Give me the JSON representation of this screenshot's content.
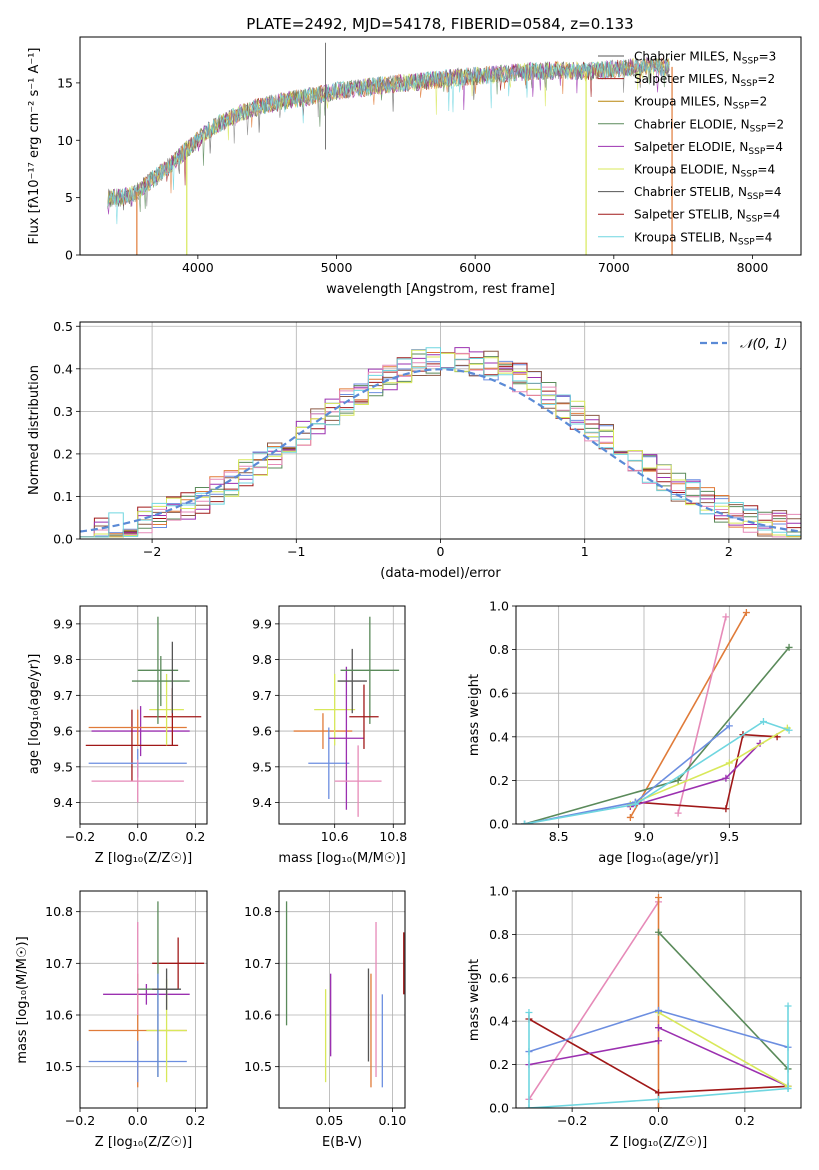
{
  "figure": {
    "title": "PLATE=2492, MJD=54178, FIBERID=0584, z=0.133",
    "colors": {
      "Chabrier MILES": "#6c8ee0",
      "Salpeter MILES": "#e07b39",
      "Kroupa MILES": "#b8860b",
      "Chabrier ELODIE": "#5a8a5a",
      "Salpeter ELODIE": "#9b30b0",
      "Kroupa ELODIE": "#d8e85a",
      "Chabrier STELIB": "#555555",
      "Salpeter STELIB": "#a01818",
      "Kroupa STELIB": "#6fd6e0",
      "gauss": "#5a8ad6",
      "pink": "#e68ab8"
    }
  },
  "chart_data": [
    {
      "type": "line",
      "name": "spectrum",
      "xlabel": "wavelength [Angstrom, rest frame]",
      "ylabel": "Flux [fλ10⁻¹⁷ erg cm⁻² s⁻¹ A⁻¹]",
      "xlim": [
        3150,
        8350
      ],
      "ylim": [
        0,
        19
      ],
      "xticks": [
        4000,
        5000,
        6000,
        7000,
        8000
      ],
      "yticks": [
        0,
        5,
        10,
        15
      ],
      "grid": false,
      "legend_position": "lower-right",
      "legend": [
        {
          "label": "Chabrier MILES, N",
          "sub": "SSP",
          "suffix": "=3",
          "color": "#555555"
        },
        {
          "label": "Salpeter MILES, N",
          "sub": "SSP",
          "suffix": "=2",
          "color": "#a01818"
        },
        {
          "label": "Kroupa MILES, N",
          "sub": "SSP",
          "suffix": "=2",
          "color": "#b8860b"
        },
        {
          "label": "Chabrier ELODIE, N",
          "sub": "SSP",
          "suffix": "=2",
          "color": "#5a8a5a"
        },
        {
          "label": "Salpeter ELODIE, N",
          "sub": "SSP",
          "suffix": "=4",
          "color": "#9b30b0"
        },
        {
          "label": "Kroupa ELODIE, N",
          "sub": "SSP",
          "suffix": "=4",
          "color": "#d8e85a"
        },
        {
          "label": "Chabrier STELIB, N",
          "sub": "SSP",
          "suffix": "=4",
          "color": "#555555"
        },
        {
          "label": "Salpeter STELIB, N",
          "sub": "SSP",
          "suffix": "=4",
          "color": "#a01818"
        },
        {
          "label": "Kroupa STELIB, N",
          "sub": "SSP",
          "suffix": "=4",
          "color": "#6fd6e0"
        }
      ],
      "continuum": {
        "x": [
          3350,
          3450,
          3550,
          3650,
          3750,
          3850,
          3950,
          4050,
          4150,
          4250,
          4400,
          4600,
          4800,
          5000,
          5200,
          5400,
          5600,
          5800,
          6000,
          6200,
          6400,
          6600,
          6800,
          7000,
          7200,
          7400
        ],
        "y": [
          5.0,
          5.0,
          5.4,
          6.4,
          7.3,
          8.4,
          9.5,
          10.6,
          11.4,
          12.0,
          12.8,
          13.4,
          13.8,
          14.3,
          14.6,
          14.9,
          15.1,
          15.4,
          15.6,
          15.8,
          16.0,
          16.1,
          16.0,
          16.2,
          16.4,
          16.4
        ]
      },
      "drops": [
        {
          "x": 3560,
          "color": "#e07b39"
        },
        {
          "x": 3920,
          "color": "#d8e85a"
        },
        {
          "x": 6800,
          "color": "#d8e85a"
        },
        {
          "x": 7420,
          "color": "#e07b39"
        }
      ]
    },
    {
      "type": "histogram",
      "name": "residuals",
      "xlabel": "(data-model)/error",
      "ylabel": "Normed distribution",
      "xlim": [
        -2.5,
        2.5
      ],
      "ylim": [
        0,
        0.51
      ],
      "xticks": [
        -2,
        -1,
        0,
        1,
        2
      ],
      "yticks": [
        0,
        0.1,
        0.2,
        0.3,
        0.4,
        0.5
      ],
      "grid": true,
      "legend_position": "upper-right",
      "gauss_label": "𝒩(0, 1)",
      "bin_width": 0.1,
      "series_count": 9
    },
    {
      "type": "errorbar",
      "name": "age-vs-Z",
      "xlabel": "Z [log₁₀(Z/Z☉)]",
      "ylabel": "age  [log₁₀(age/yr)]",
      "xlim": [
        -0.2,
        0.24
      ],
      "ylim": [
        9.34,
        9.95
      ],
      "xticks": [
        -0.2,
        0.0,
        0.2
      ],
      "yticks": [
        9.4,
        9.5,
        9.6,
        9.7,
        9.8,
        9.9
      ],
      "grid": true,
      "points": [
        {
          "x": 0.01,
          "y": 9.6,
          "xerr": 0.17,
          "yerr": 0.07,
          "color": "#9b30b0"
        },
        {
          "x": -0.02,
          "y": 9.56,
          "xerr": 0.16,
          "yerr": 0.1,
          "color": "#a01818"
        },
        {
          "x": 0.0,
          "y": 9.61,
          "xerr": 0.17,
          "yerr": 0.05,
          "color": "#e07b39"
        },
        {
          "x": 0.0,
          "y": 9.51,
          "xerr": 0.17,
          "yerr": 0.04,
          "color": "#6c8ee0"
        },
        {
          "x": 0.0,
          "y": 9.46,
          "xerr": 0.16,
          "yerr": 0.06,
          "color": "#e68ab8"
        },
        {
          "x": 0.12,
          "y": 9.64,
          "xerr": 0.1,
          "yerr": 0.08,
          "color": "#a01818"
        },
        {
          "x": 0.1,
          "y": 9.66,
          "xerr": 0.06,
          "yerr": 0.1,
          "color": "#d8e85a"
        },
        {
          "x": 0.07,
          "y": 9.77,
          "xerr": 0.07,
          "yerr": 0.15,
          "color": "#5a8a5a"
        },
        {
          "x": 0.08,
          "y": 9.74,
          "xerr": 0.1,
          "yerr": 0.07,
          "color": "#5a8a5a"
        },
        {
          "x": 0.12,
          "y": 9.75,
          "xerr": 0.0,
          "yerr": 0.1,
          "color": "#555555"
        }
      ]
    },
    {
      "type": "errorbar",
      "name": "age-vs-mass",
      "xlabel": "mass [log₁₀(M/M☉)]",
      "ylabel": "",
      "xlim": [
        10.41,
        10.84
      ],
      "ylim": [
        9.34,
        9.95
      ],
      "xticks": [
        10.6,
        10.8
      ],
      "yticks": [
        9.4,
        9.5,
        9.6,
        9.7,
        9.8,
        9.9
      ],
      "grid": true,
      "points": [
        {
          "x": 10.56,
          "y": 9.6,
          "xerr": 0.1,
          "yerr": 0.05,
          "color": "#e07b39"
        },
        {
          "x": 10.58,
          "y": 9.51,
          "xerr": 0.07,
          "yerr": 0.1,
          "color": "#6c8ee0"
        },
        {
          "x": 10.6,
          "y": 9.66,
          "xerr": 0.07,
          "yerr": 0.1,
          "color": "#d8e85a"
        },
        {
          "x": 10.64,
          "y": 9.58,
          "xerr": 0.06,
          "yerr": 0.2,
          "color": "#9b30b0"
        },
        {
          "x": 10.68,
          "y": 9.46,
          "xerr": 0.08,
          "yerr": 0.1,
          "color": "#e68ab8"
        },
        {
          "x": 10.66,
          "y": 9.74,
          "xerr": 0.05,
          "yerr": 0.09,
          "color": "#555555"
        },
        {
          "x": 10.72,
          "y": 9.77,
          "xerr": 0.1,
          "yerr": 0.15,
          "color": "#5a8a5a"
        },
        {
          "x": 10.7,
          "y": 9.64,
          "xerr": 0.05,
          "yerr": 0.09,
          "color": "#a01818"
        }
      ]
    },
    {
      "type": "line",
      "name": "massweight-vs-age",
      "xlabel": "age  [log₁₀(age/yr)]",
      "ylabel": "mass weight",
      "xlim": [
        8.25,
        9.92
      ],
      "ylim": [
        0,
        1.0
      ],
      "xticks": [
        8.5,
        9.0,
        9.5
      ],
      "yticks": [
        0.0,
        0.2,
        0.4,
        0.6,
        0.8,
        1.0
      ],
      "grid": true,
      "series": [
        {
          "color": "#e07b39",
          "x": [
            8.92,
            9.6
          ],
          "y": [
            0.03,
            0.97
          ]
        },
        {
          "color": "#e68ab8",
          "x": [
            9.2,
            9.48
          ],
          "y": [
            0.05,
            0.95
          ]
        },
        {
          "color": "#5a8a5a",
          "x": [
            8.3,
            9.2,
            9.85
          ],
          "y": [
            0.0,
            0.2,
            0.81
          ]
        },
        {
          "color": "#a01818",
          "x": [
            8.95,
            9.48,
            9.58,
            9.78
          ],
          "y": [
            0.1,
            0.07,
            0.41,
            0.4
          ]
        },
        {
          "color": "#9b30b0",
          "x": [
            8.92,
            9.48,
            9.68
          ],
          "y": [
            0.08,
            0.21,
            0.37
          ]
        },
        {
          "color": "#d8e85a",
          "x": [
            8.92,
            9.5,
            9.84
          ],
          "y": [
            0.09,
            0.28,
            0.44
          ]
        },
        {
          "color": "#6c8ee0",
          "x": [
            8.3,
            8.95,
            9.5
          ],
          "y": [
            0.0,
            0.1,
            0.45
          ]
        },
        {
          "color": "#6fd6e0",
          "x": [
            8.3,
            8.95,
            9.7,
            9.85
          ],
          "y": [
            0.0,
            0.09,
            0.47,
            0.43
          ]
        }
      ]
    },
    {
      "type": "errorbar",
      "name": "mass-vs-Z",
      "xlabel": "Z [log₁₀(Z/Z☉)]",
      "ylabel": "mass [log₁₀(M/M☉)]",
      "xlim": [
        -0.2,
        0.24
      ],
      "ylim": [
        10.42,
        10.84
      ],
      "xticks": [
        -0.2,
        0.0,
        0.2
      ],
      "yticks": [
        10.5,
        10.6,
        10.7,
        10.8
      ],
      "grid": true,
      "points": [
        {
          "x": 0.03,
          "y": 10.64,
          "xerr": 0.15,
          "yerr": 0.02,
          "color": "#9b30b0"
        },
        {
          "x": 0.0,
          "y": 10.57,
          "xerr": 0.17,
          "yerr": 0.11,
          "color": "#e07b39"
        },
        {
          "x": 0.0,
          "y": 10.51,
          "xerr": 0.17,
          "yerr": 0.04,
          "color": "#6c8ee0"
        },
        {
          "x": 0.0,
          "y": 10.69,
          "xerr": 0.0,
          "yerr": 0.09,
          "color": "#e68ab8"
        },
        {
          "x": 0.14,
          "y": 10.7,
          "xerr": 0.09,
          "yerr": 0.05,
          "color": "#a01818"
        },
        {
          "x": 0.1,
          "y": 10.57,
          "xerr": 0.07,
          "yerr": 0.1,
          "color": "#d8e85a"
        },
        {
          "x": 0.07,
          "y": 10.65,
          "xerr": 0.07,
          "yerr": 0.17,
          "color": "#5a8a5a"
        },
        {
          "x": 0.07,
          "y": 10.58,
          "xerr": 0.0,
          "yerr": 0.1,
          "color": "#6c8ee0"
        },
        {
          "x": 0.1,
          "y": 10.65,
          "xerr": 0.05,
          "yerr": 0.04,
          "color": "#555555"
        }
      ]
    },
    {
      "type": "errorbar",
      "name": "mass-vs-ebv",
      "xlabel": "E(B-V)",
      "ylabel": "",
      "xlim": [
        0.01,
        0.11
      ],
      "ylim": [
        10.42,
        10.84
      ],
      "xticks": [
        0.05,
        0.1
      ],
      "yticks": [
        10.5,
        10.6,
        10.7,
        10.8
      ],
      "grid": true,
      "points": [
        {
          "x": 0.016,
          "y": 10.7,
          "xerr": 0,
          "yerr": 0.12,
          "color": "#5a8a5a"
        },
        {
          "x": 0.047,
          "y": 10.56,
          "xerr": 0,
          "yerr": 0.09,
          "color": "#d8e85a"
        },
        {
          "x": 0.051,
          "y": 10.6,
          "xerr": 0,
          "yerr": 0.08,
          "color": "#9b30b0"
        },
        {
          "x": 0.081,
          "y": 10.6,
          "xerr": 0,
          "yerr": 0.09,
          "color": "#555555"
        },
        {
          "x": 0.083,
          "y": 10.57,
          "xerr": 0,
          "yerr": 0.11,
          "color": "#e07b39"
        },
        {
          "x": 0.087,
          "y": 10.63,
          "xerr": 0,
          "yerr": 0.15,
          "color": "#e68ab8"
        },
        {
          "x": 0.092,
          "y": 10.55,
          "xerr": 0,
          "yerr": 0.09,
          "color": "#6c8ee0"
        },
        {
          "x": 0.109,
          "y": 10.7,
          "xerr": 0,
          "yerr": 0.06,
          "color": "#a01818"
        }
      ]
    },
    {
      "type": "line",
      "name": "massweight-vs-Z",
      "xlabel": "Z [log₁₀(Z/Z☉)]",
      "ylabel": "mass weight",
      "xlim": [
        -0.33,
        0.33
      ],
      "ylim": [
        0,
        1.0
      ],
      "xticks": [
        -0.2,
        0.0,
        0.2
      ],
      "yticks": [
        0.0,
        0.2,
        0.4,
        0.6,
        0.8,
        1.0
      ],
      "grid": true,
      "series": [
        {
          "color": "#e68ab8",
          "x": [
            -0.3,
            0.0
          ],
          "y": [
            0.04,
            0.95
          ]
        },
        {
          "color": "#e07b39",
          "x": [
            0.0,
            0.0
          ],
          "y": [
            0.0,
            0.97
          ]
        },
        {
          "color": "#5a8a5a",
          "x": [
            0.0,
            0.3
          ],
          "y": [
            0.81,
            0.18
          ]
        },
        {
          "color": "#a01818",
          "x": [
            -0.3,
            0.0,
            0.3
          ],
          "y": [
            0.41,
            0.07,
            0.1
          ]
        },
        {
          "color": "#9b30b0",
          "x": [
            -0.3,
            0.0
          ],
          "y": [
            0.2,
            0.31
          ]
        },
        {
          "color": "#9b30b0",
          "x": [
            0.0,
            0.3
          ],
          "y": [
            0.37,
            0.1
          ]
        },
        {
          "color": "#d8e85a",
          "x": [
            0.0,
            0.3
          ],
          "y": [
            0.44,
            0.1
          ]
        },
        {
          "color": "#6c8ee0",
          "x": [
            -0.3,
            0.0,
            0.3
          ],
          "y": [
            0.26,
            0.45,
            0.28
          ]
        },
        {
          "color": "#6fd6e0",
          "x": [
            -0.3,
            0.0,
            0.3
          ],
          "y": [
            0.0,
            0.04,
            0.09
          ]
        },
        {
          "color": "#6fd6e0",
          "x": [
            -0.3,
            -0.3
          ],
          "y": [
            0.0,
            0.44
          ]
        },
        {
          "color": "#6fd6e0",
          "x": [
            0.3,
            0.3
          ],
          "y": [
            0.09,
            0.47
          ]
        }
      ]
    }
  ]
}
